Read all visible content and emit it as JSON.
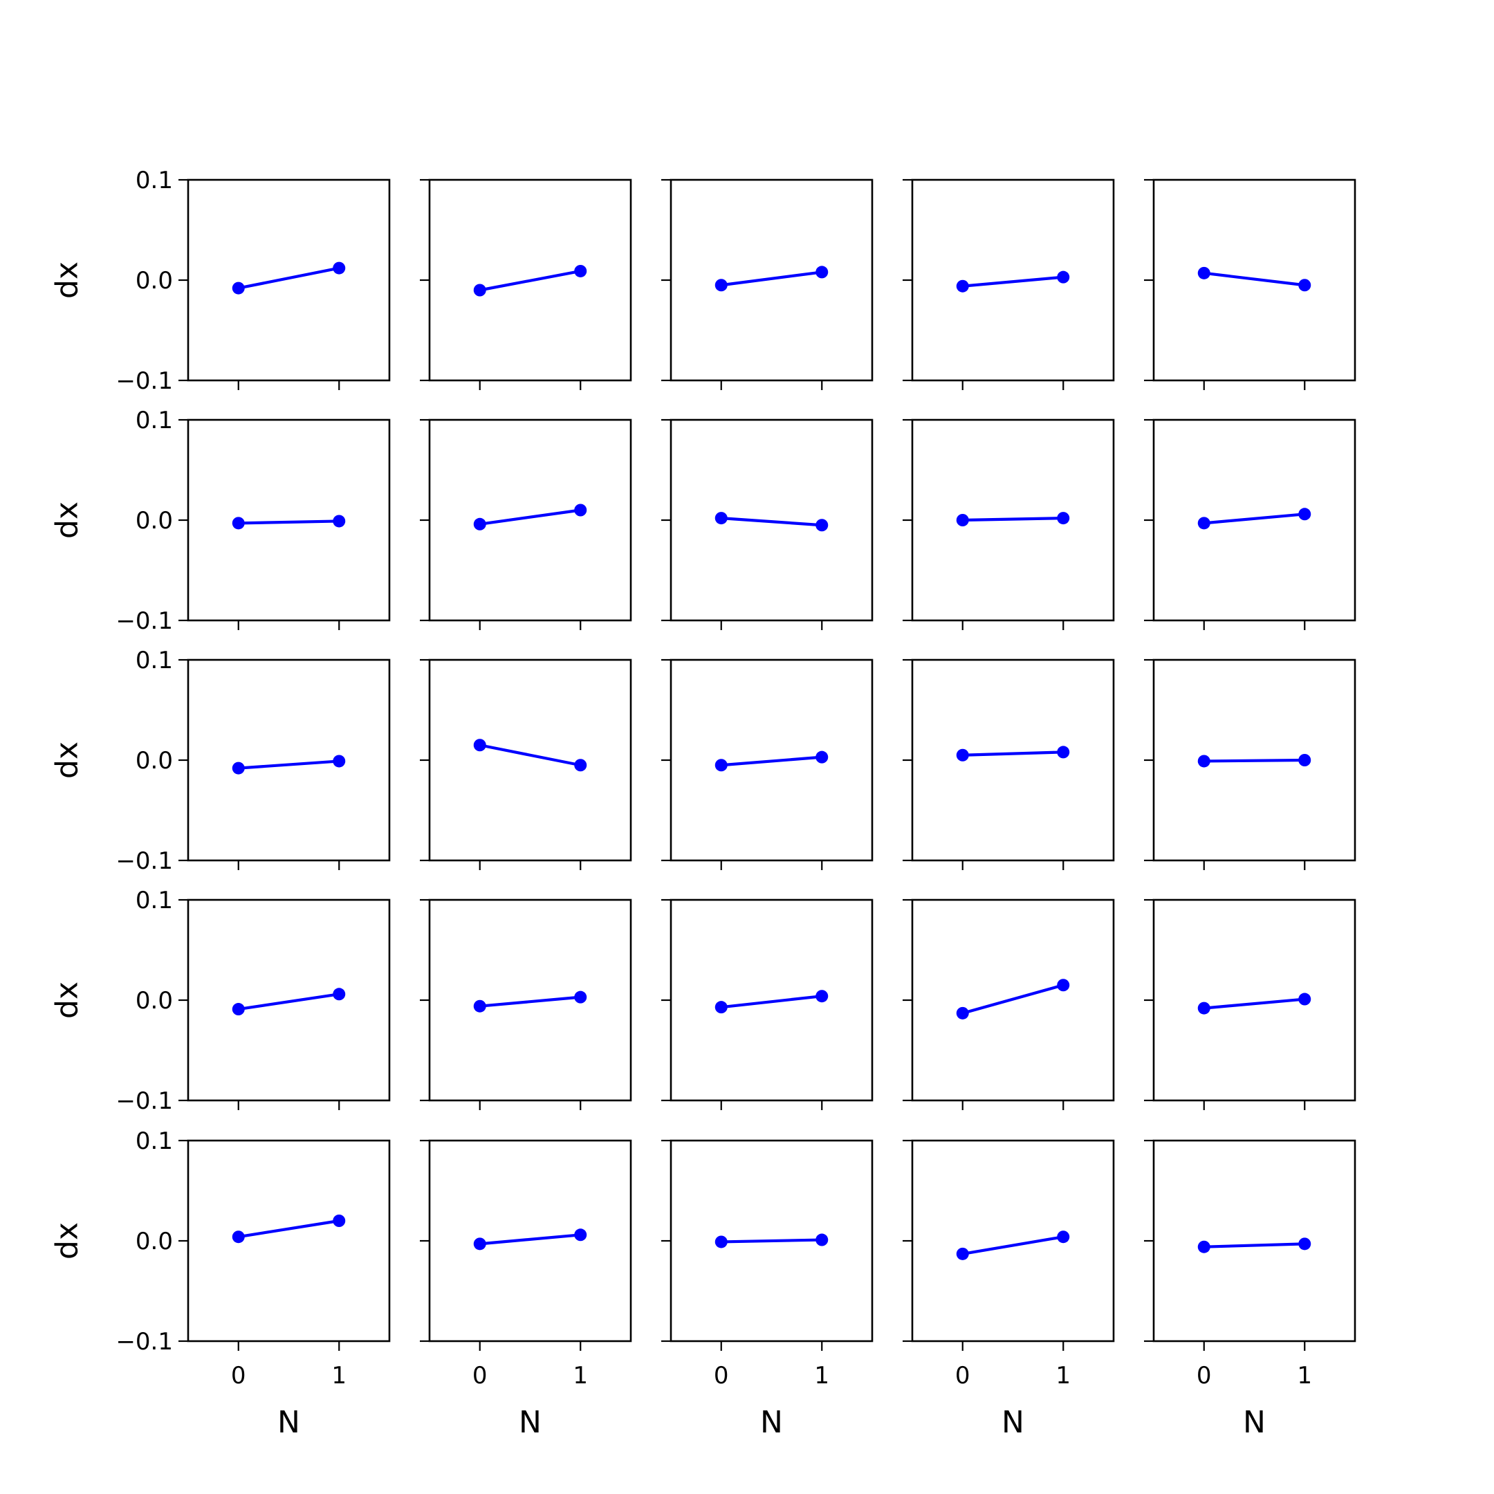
{
  "chart_data": {
    "type": "line",
    "layout": {
      "rows": 5,
      "cols": 5
    },
    "sharex": true,
    "sharey": true,
    "xlabel": "N",
    "ylabel": "dx",
    "xlim": [
      -0.5,
      1.5
    ],
    "ylim": [
      -0.1,
      0.1
    ],
    "x": [
      0,
      1
    ],
    "xticks": [
      0,
      1
    ],
    "xtick_labels": [
      "0",
      "1"
    ],
    "yticks": [
      0.1,
      0.0,
      -0.1
    ],
    "ytick_labels": [
      "0.1",
      "0.0",
      "−0.1"
    ],
    "grid": false,
    "series_color": "#0000ff",
    "marker": "circle",
    "panels": [
      [
        [
          -0.008,
          0.012
        ],
        [
          -0.01,
          0.009
        ],
        [
          -0.005,
          0.008
        ],
        [
          -0.006,
          0.003
        ],
        [
          0.007,
          -0.005
        ]
      ],
      [
        [
          -0.003,
          -0.001
        ],
        [
          -0.004,
          0.01
        ],
        [
          0.002,
          -0.005
        ],
        [
          0.0,
          0.002
        ],
        [
          -0.003,
          0.006
        ]
      ],
      [
        [
          -0.008,
          -0.001
        ],
        [
          0.015,
          -0.005
        ],
        [
          -0.005,
          0.003
        ],
        [
          0.005,
          0.008
        ],
        [
          -0.001,
          0.0
        ]
      ],
      [
        [
          -0.009,
          0.006
        ],
        [
          -0.006,
          0.003
        ],
        [
          -0.007,
          0.004
        ],
        [
          -0.013,
          0.015
        ],
        [
          -0.008,
          0.001
        ]
      ],
      [
        [
          0.004,
          0.02
        ],
        [
          -0.003,
          0.006
        ],
        [
          -0.001,
          0.001
        ],
        [
          -0.013,
          0.004
        ],
        [
          -0.006,
          -0.003
        ]
      ]
    ]
  }
}
